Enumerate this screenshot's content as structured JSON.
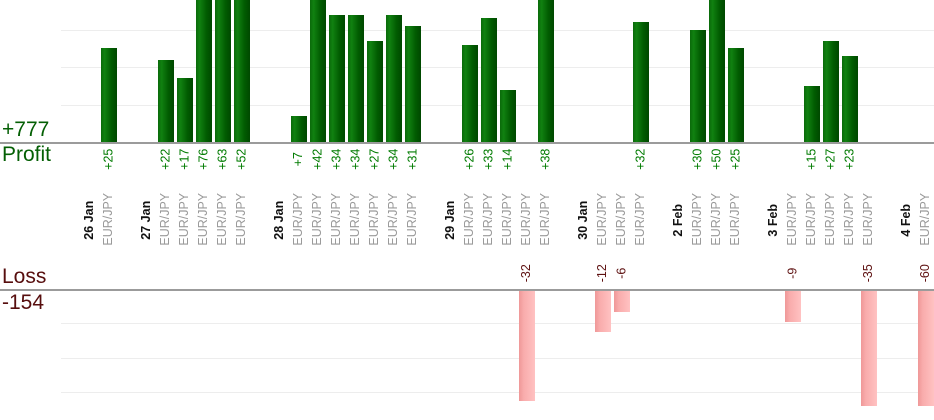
{
  "summary": {
    "profit_total": "+777",
    "profit_label": "Profit",
    "loss_label": "Loss",
    "loss_total": "-154"
  },
  "chart_data": {
    "type": "bar",
    "title": "",
    "orientation": "vertical-grouped-by-date",
    "legend": "none",
    "groups": [
      {
        "date": "26 Jan",
        "trades": [
          {
            "symbol": "EUR/JPY",
            "value": 25,
            "label": "+25"
          }
        ]
      },
      {
        "date": "27 Jan",
        "trades": [
          {
            "symbol": "EUR/JPY",
            "value": 22,
            "label": "+22"
          },
          {
            "symbol": "EUR/JPY",
            "value": 17,
            "label": "+17"
          },
          {
            "symbol": "EUR/JPY",
            "value": 76,
            "label": "+76"
          },
          {
            "symbol": "EUR/JPY",
            "value": 63,
            "label": "+63"
          },
          {
            "symbol": "EUR/JPY",
            "value": 52,
            "label": "+52"
          }
        ]
      },
      {
        "date": "28 Jan",
        "trades": [
          {
            "symbol": "EUR/JPY",
            "value": 7,
            "label": "+7"
          },
          {
            "symbol": "EUR/JPY",
            "value": 42,
            "label": "+42"
          },
          {
            "symbol": "EUR/JPY",
            "value": 34,
            "label": "+34"
          },
          {
            "symbol": "EUR/JPY",
            "value": 34,
            "label": "+34"
          },
          {
            "symbol": "EUR/JPY",
            "value": 27,
            "label": "+27"
          },
          {
            "symbol": "EUR/JPY",
            "value": 34,
            "label": "+34"
          },
          {
            "symbol": "EUR/JPY",
            "value": 31,
            "label": "+31"
          }
        ]
      },
      {
        "date": "29 Jan",
        "trades": [
          {
            "symbol": "EUR/JPY",
            "value": 26,
            "label": "+26"
          },
          {
            "symbol": "EUR/JPY",
            "value": 33,
            "label": "+33"
          },
          {
            "symbol": "EUR/JPY",
            "value": 14,
            "label": "+14"
          },
          {
            "symbol": "EUR/JPY",
            "value": -32,
            "label": "-32"
          },
          {
            "symbol": "EUR/JPY",
            "value": 38,
            "label": "+38"
          }
        ]
      },
      {
        "date": "30 Jan",
        "trades": [
          {
            "symbol": "EUR/JPY",
            "value": -12,
            "label": "-12"
          },
          {
            "symbol": "EUR/JPY",
            "value": -6,
            "label": "-6"
          },
          {
            "symbol": "EUR/JPY",
            "value": 32,
            "label": "+32"
          }
        ]
      },
      {
        "date": "2 Feb",
        "trades": [
          {
            "symbol": "EUR/JPY",
            "value": 30,
            "label": "+30"
          },
          {
            "symbol": "EUR/JPY",
            "value": 50,
            "label": "+50"
          },
          {
            "symbol": "EUR/JPY",
            "value": 25,
            "label": "+25"
          }
        ]
      },
      {
        "date": "3 Feb",
        "trades": [
          {
            "symbol": "EUR/JPY",
            "value": -9,
            "label": "-9"
          },
          {
            "symbol": "EUR/JPY",
            "value": 15,
            "label": "+15"
          },
          {
            "symbol": "EUR/JPY",
            "value": 27,
            "label": "+27"
          },
          {
            "symbol": "EUR/JPY",
            "value": 23,
            "label": "+23"
          },
          {
            "symbol": "EUR/JPY",
            "value": -35,
            "label": "-35"
          }
        ]
      },
      {
        "date": "4 Feb",
        "trades": [
          {
            "symbol": "EUR/JPY",
            "value": -60,
            "label": "-60"
          }
        ]
      }
    ],
    "totals": {
      "profit_sum": 777,
      "loss_sum": -154
    },
    "profit_axis": {
      "label": "Profit",
      "total_label": "+777",
      "gridline_step": 10,
      "visible_range": [
        0,
        38
      ],
      "bars_clipped_at_top": [
        76,
        63,
        52,
        42,
        50,
        38
      ]
    },
    "loss_axis": {
      "label": "Loss",
      "total_label": "-154",
      "gridline_step": 10,
      "visible_range": [
        0,
        -33
      ],
      "bars_clipped_at_bottom": [
        -35,
        -60
      ]
    },
    "colors": {
      "profit_bar_light": "#118111",
      "profit_bar_dark": "#004800",
      "loss_bar_light": "#ffc2c2",
      "loss_bar_dark": "#ef9898",
      "profit_value_text": "#007b00",
      "loss_value_text": "#5e1111",
      "profit_summary_text": "#045f04",
      "loss_summary_text": "#570e0e",
      "date_text": "#111111",
      "symbol_text": "#9a9a9a",
      "axis_line": "#9b9b9b",
      "gridline": "#ededed",
      "background": "#ffffff"
    }
  }
}
